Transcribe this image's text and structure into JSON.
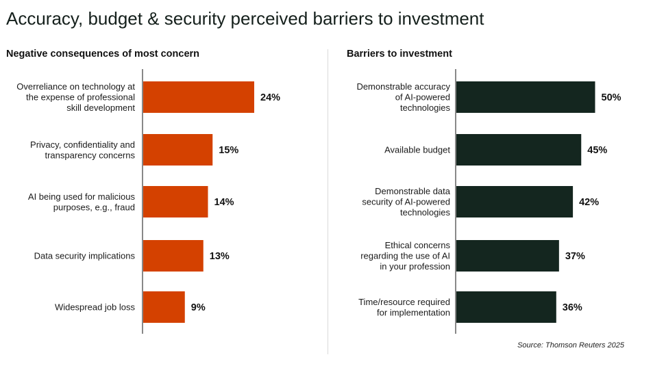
{
  "title": "Accuracy, budget & security perceived barriers to investment",
  "source": "Source: Thomson Reuters 2025",
  "chart_data": [
    {
      "type": "bar",
      "orientation": "horizontal",
      "title": "Negative consequences of most concern",
      "color": "#d44100",
      "categories": [
        [
          "Overreliance on technology at",
          "the expense of professional",
          "skill development"
        ],
        [
          "Privacy, confidentiality and",
          "transparency concerns"
        ],
        [
          "AI being used for malicious",
          "purposes, e.g., fraud"
        ],
        [
          "Data security implications"
        ],
        [
          "Widespread job loss"
        ]
      ],
      "values": [
        24,
        15,
        14,
        13,
        9
      ],
      "value_labels": [
        "24%",
        "15%",
        "14%",
        "13%",
        "9%"
      ],
      "unit": "%"
    },
    {
      "type": "bar",
      "orientation": "horizontal",
      "title": "Barriers to investment",
      "color": "#14261f",
      "categories": [
        [
          "Demonstrable accuracy",
          "of AI-powered",
          "technologies"
        ],
        [
          "Available budget"
        ],
        [
          "Demonstrable data",
          "security of AI-powered",
          "technologies"
        ],
        [
          "Ethical concerns",
          "regarding the use of AI",
          "in your profession"
        ],
        [
          "Time/resource required",
          "for implementation"
        ]
      ],
      "values": [
        50,
        45,
        42,
        37,
        36
      ],
      "value_labels": [
        "50%",
        "45%",
        "42%",
        "37%",
        "36%"
      ],
      "unit": "%"
    }
  ]
}
